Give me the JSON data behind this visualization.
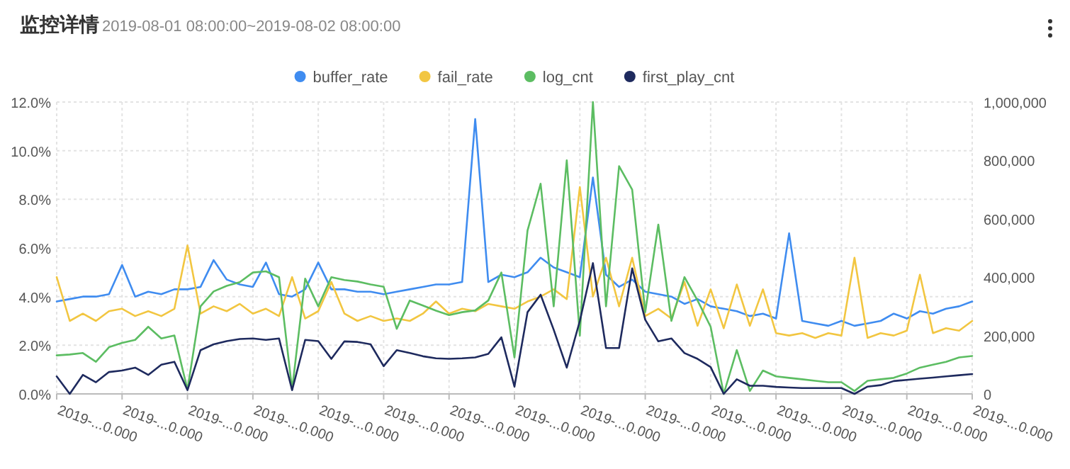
{
  "chart_data": {
    "type": "line",
    "title": "监控详情",
    "subtitle": "2019-08-01 08:00:00~2019-08-02 08:00:00",
    "categories": [
      "2019-...0.000",
      null,
      null,
      null,
      null,
      "2019-...0.000",
      null,
      null,
      null,
      null,
      "2019-...0.000",
      null,
      null,
      null,
      null,
      "2019-...0.000",
      null,
      null,
      null,
      null,
      "2019-...0.000",
      null,
      null,
      null,
      null,
      "2019-...0.000",
      null,
      null,
      null,
      null,
      "2019-...0.000",
      null,
      null,
      null,
      null,
      "2019-...0.000",
      null,
      null,
      null,
      null,
      "2019-...0.000",
      null,
      null,
      null,
      null,
      "2019-...0.000",
      null,
      null,
      null,
      null,
      "2019-...0.000",
      null,
      null,
      null,
      null,
      "2019-...0.000",
      null,
      null,
      null,
      null,
      "2019-...0.000",
      null,
      null,
      null,
      null,
      "2019-...0.000",
      null,
      null,
      null,
      null,
      "2019-...0.000"
    ],
    "ylim": [
      0,
      12
    ],
    "yticks": [
      {
        "value": 0,
        "label": "0.0%"
      },
      {
        "value": 2,
        "label": "2.0%"
      },
      {
        "value": 4,
        "label": "4.0%"
      },
      {
        "value": 6,
        "label": "6.0%"
      },
      {
        "value": 8,
        "label": "8.0%"
      },
      {
        "value": 10,
        "label": "10.0%"
      },
      {
        "value": 12,
        "label": "12.0%"
      }
    ],
    "y2lim": [
      0,
      1000000
    ],
    "y2ticks": [
      0,
      {
        "value": 200000,
        "label": "200,000"
      },
      {
        "value": 400000,
        "label": "400,000"
      },
      {
        "value": 600000,
        "label": "600,000"
      },
      {
        "value": 800000,
        "label": "800,000"
      },
      {
        "value": 1000000,
        "label": "1,000,000"
      }
    ],
    "grid": true,
    "legend": "top",
    "marker": "none",
    "line_style": "solid",
    "series": [
      {
        "name": "buffer_rate",
        "color": "#3f8cf0",
        "values": [
          3.8,
          3.9,
          4.0,
          4.0,
          4.1,
          5.3,
          4.0,
          4.2,
          4.1,
          4.3,
          4.3,
          4.4,
          5.5,
          4.7,
          4.5,
          4.4,
          5.4,
          4.1,
          4.0,
          4.3,
          5.4,
          4.3,
          4.3,
          4.2,
          4.2,
          4.1,
          4.2,
          4.3,
          4.4,
          4.5,
          4.5,
          4.6,
          11.3,
          4.6,
          4.9,
          4.8,
          5.0,
          5.6,
          5.2,
          5.0,
          4.8,
          8.9,
          4.9,
          4.4,
          4.7,
          4.2,
          4.1,
          4.0,
          3.7,
          3.9,
          3.6,
          3.5,
          3.4,
          3.2,
          3.3,
          3.1,
          6.6,
          3.0,
          2.9,
          2.8,
          3.0,
          2.8,
          2.9,
          3.0,
          3.3,
          3.1,
          3.4,
          3.3,
          3.5,
          3.6,
          3.8
        ]
      },
      {
        "name": "fail_rate",
        "color": "#f2c641",
        "values": [
          4.8,
          3.0,
          3.3,
          3.0,
          3.4,
          3.5,
          3.2,
          3.4,
          3.2,
          3.5,
          6.1,
          3.3,
          3.6,
          3.4,
          3.7,
          3.3,
          3.5,
          3.2,
          4.8,
          3.1,
          3.4,
          4.6,
          3.3,
          3.0,
          3.2,
          3.0,
          3.1,
          3.0,
          3.3,
          3.8,
          3.3,
          3.5,
          3.4,
          3.7,
          3.6,
          3.5,
          3.8,
          4.0,
          4.3,
          3.9,
          8.5,
          4.0,
          5.6,
          3.6,
          5.6,
          3.2,
          3.5,
          3.1,
          4.6,
          2.8,
          4.3,
          2.7,
          4.5,
          2.8,
          4.3,
          2.5,
          2.4,
          2.5,
          2.3,
          2.5,
          2.4,
          5.6,
          2.3,
          2.5,
          2.4,
          2.6,
          4.9,
          2.5,
          2.7,
          2.6,
          3.0
        ]
      },
      {
        "name": "log_cnt",
        "color": "#5cbd62",
        "axis": "y2",
        "values": [
          132000,
          135000,
          140000,
          110000,
          160000,
          175000,
          185000,
          230000,
          190000,
          200000,
          15000,
          300000,
          351000,
          370000,
          383000,
          416000,
          420000,
          400000,
          15000,
          395000,
          300000,
          400000,
          390000,
          385000,
          375000,
          367000,
          223000,
          320000,
          303000,
          285000,
          270000,
          280000,
          286000,
          320000,
          416000,
          125000,
          560000,
          720000,
          300000,
          800000,
          200000,
          1000000,
          300000,
          780000,
          700000,
          280000,
          580000,
          250000,
          400000,
          320000,
          230000,
          0,
          150000,
          10000,
          80000,
          60000,
          55000,
          50000,
          45000,
          40000,
          40000,
          10000,
          45000,
          50000,
          55000,
          70000,
          90000,
          100000,
          110000,
          125000,
          130000
        ]
      },
      {
        "name": "first_play_cnt",
        "color": "#1e2a5e",
        "axis": "y2",
        "values": [
          60000,
          0,
          65000,
          40000,
          75000,
          80000,
          90000,
          65000,
          100000,
          110000,
          13000,
          150000,
          170000,
          181000,
          188000,
          190000,
          185000,
          190000,
          13000,
          185000,
          181000,
          120000,
          180000,
          178000,
          170000,
          95000,
          150000,
          140000,
          129000,
          122000,
          120000,
          122000,
          125000,
          137000,
          194000,
          25000,
          280000,
          340000,
          220000,
          90000,
          250000,
          448000,
          157000,
          157000,
          430000,
          254000,
          180000,
          190000,
          140000,
          120000,
          92000,
          0,
          50000,
          28000,
          28000,
          24000,
          22000,
          20000,
          20000,
          20000,
          20000,
          0,
          25000,
          30000,
          44000,
          48000,
          52000,
          56000,
          60000,
          64000,
          68000
        ]
      }
    ]
  }
}
